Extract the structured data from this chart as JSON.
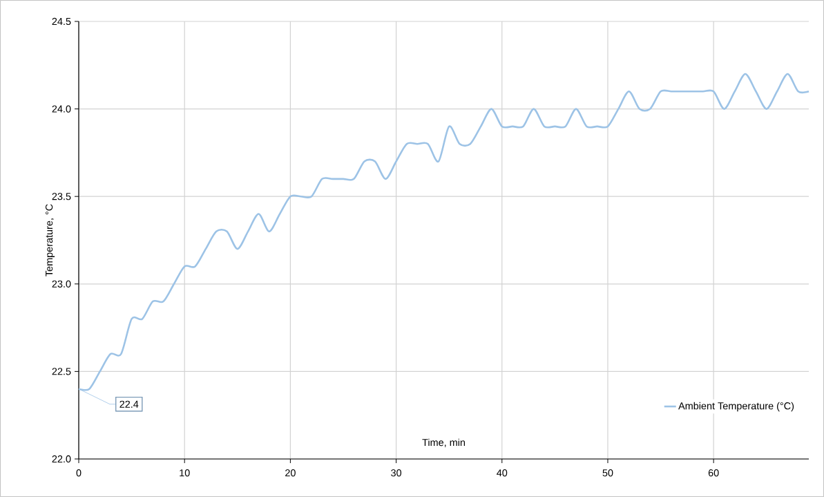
{
  "chart_data": {
    "type": "line",
    "xlabel": "Time, min",
    "ylabel": "Temperature, °C",
    "x": [
      0,
      1,
      2,
      3,
      4,
      5,
      6,
      7,
      8,
      9,
      10,
      11,
      12,
      13,
      14,
      15,
      16,
      17,
      18,
      19,
      20,
      21,
      22,
      23,
      24,
      25,
      26,
      27,
      28,
      29,
      30,
      31,
      32,
      33,
      34,
      35,
      36,
      37,
      38,
      39,
      40,
      41,
      42,
      43,
      44,
      45,
      46,
      47,
      48,
      49,
      50,
      51,
      52,
      53,
      54,
      55,
      56,
      57,
      58,
      59,
      60,
      61,
      62,
      63,
      64,
      65,
      66,
      67,
      68,
      69
    ],
    "series": [
      {
        "name": "Ambient Temperature (°C)",
        "color": "#9dc3e6",
        "values": [
          22.4,
          22.4,
          22.5,
          22.6,
          22.6,
          22.8,
          22.8,
          22.9,
          22.9,
          23.0,
          23.1,
          23.1,
          23.2,
          23.3,
          23.3,
          23.2,
          23.3,
          23.4,
          23.3,
          23.4,
          23.5,
          23.5,
          23.5,
          23.6,
          23.6,
          23.6,
          23.6,
          23.7,
          23.7,
          23.6,
          23.7,
          23.8,
          23.8,
          23.8,
          23.7,
          23.9,
          23.8,
          23.8,
          23.9,
          24.0,
          23.9,
          23.9,
          23.9,
          24.0,
          23.9,
          23.9,
          23.9,
          24.0,
          23.9,
          23.9,
          23.9,
          24.0,
          24.1,
          24.0,
          24.0,
          24.1,
          24.1,
          24.1,
          24.1,
          24.1,
          24.1,
          24.0,
          24.1,
          24.2,
          24.1,
          24.0,
          24.1,
          24.2,
          24.1,
          24.1
        ],
        "value_labels": [
          "22.4",
          null,
          null,
          null,
          null,
          null,
          null,
          null,
          null,
          null,
          null,
          null,
          null,
          null,
          null,
          null,
          null,
          null,
          null,
          null,
          null,
          null,
          null,
          null,
          null,
          null,
          null,
          null,
          null,
          null,
          null,
          null,
          null,
          null,
          null,
          null,
          null,
          null,
          null,
          null,
          null,
          null,
          null,
          null,
          null,
          null,
          null,
          null,
          null,
          null,
          null,
          null,
          null,
          null,
          null,
          null,
          null,
          null,
          null,
          null,
          null,
          null,
          null,
          null,
          null,
          null,
          null,
          null,
          null,
          null
        ]
      }
    ],
    "xlim": [
      0,
      69
    ],
    "xticks": [
      0,
      10,
      20,
      30,
      40,
      50,
      60
    ],
    "ylim": [
      22.0,
      24.5
    ],
    "yticks": [
      {
        "value": 22.0,
        "label": "22.0"
      },
      {
        "value": 22.5,
        "label": "22.5"
      },
      {
        "value": 23.0,
        "label": "23.0"
      },
      {
        "value": 23.5,
        "label": "23.5"
      },
      {
        "value": 24.0,
        "label": "24.0"
      },
      {
        "value": 24.5,
        "label": "24.5"
      }
    ],
    "grid": true,
    "legend": "bottom right",
    "marker": "none",
    "line_style": "solid"
  }
}
